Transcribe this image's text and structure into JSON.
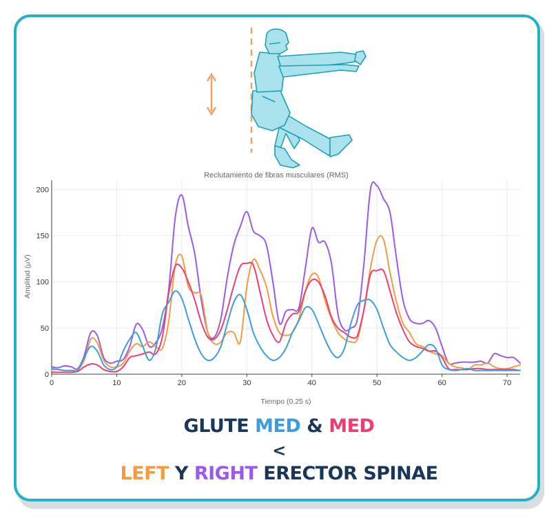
{
  "colors": {
    "frame": "#22b2c6",
    "navy": "#19375a",
    "blue": "#3b9ce0",
    "pink": "#ee3d6f",
    "orange": "#f59a43",
    "purple": "#9a59e6",
    "figure_fill": "#a9e2ec",
    "figure_line": "#1d9fb3",
    "arrow": "#f0a060"
  },
  "icons": [
    "single-leg-squat-figure-icon",
    "vertical-double-arrow-icon"
  ],
  "chart_data": {
    "type": "line",
    "title": "Reclutamiento de fibras musculares (RMS)",
    "xlabel": "Tiempo (0.25 s)",
    "ylabel": "Amplitud (µV)",
    "xlim": [
      0,
      72
    ],
    "ylim": [
      0,
      210
    ],
    "xticks": [
      "0",
      "10",
      "20",
      "30",
      "40",
      "50",
      "60",
      "70"
    ],
    "yticks": [
      "0",
      "50",
      "100",
      "150",
      "200"
    ],
    "grid": true,
    "legend": "none",
    "series": [
      {
        "color": "purple",
        "x": [
          0,
          1,
          2,
          3,
          4,
          5,
          6,
          7,
          8,
          9,
          10,
          11,
          12,
          13,
          14,
          15,
          16,
          17,
          18,
          19,
          20,
          21,
          22,
          23,
          24,
          25,
          26,
          27,
          28,
          29,
          30,
          31,
          32,
          33,
          34,
          35,
          36,
          37,
          38,
          39,
          40,
          41,
          42,
          43,
          44,
          45,
          46,
          47,
          48,
          49,
          50,
          51,
          52,
          53,
          54,
          55,
          56,
          57,
          58,
          59,
          60,
          61,
          62,
          63,
          64,
          65,
          66,
          67,
          68,
          69,
          70,
          71,
          72
        ],
        "values": [
          8,
          7,
          9,
          8,
          6,
          20,
          45,
          42,
          18,
          12,
          14,
          16,
          30,
          54,
          48,
          30,
          34,
          50,
          92,
          170,
          194,
          160,
          130,
          80,
          45,
          40,
          60,
          105,
          140,
          160,
          176,
          155,
          150,
          140,
          100,
          55,
          68,
          70,
          72,
          115,
          158,
          143,
          143,
          120,
          65,
          48,
          50,
          60,
          120,
          200,
          204,
          190,
          175,
          125,
          80,
          60,
          55,
          55,
          58,
          50,
          30,
          12,
          12,
          13,
          13,
          13,
          14,
          12,
          22,
          20,
          18,
          18,
          12
        ]
      },
      {
        "color": "orange",
        "x": [
          0,
          1,
          2,
          3,
          4,
          5,
          6,
          7,
          8,
          9,
          10,
          11,
          12,
          13,
          14,
          15,
          16,
          17,
          18,
          19,
          20,
          21,
          22,
          23,
          24,
          25,
          26,
          27,
          28,
          29,
          30,
          31,
          32,
          33,
          34,
          35,
          36,
          37,
          38,
          39,
          40,
          41,
          42,
          43,
          44,
          45,
          46,
          47,
          48,
          49,
          50,
          51,
          52,
          53,
          54,
          55,
          56,
          57,
          58,
          59,
          60,
          61,
          62,
          63,
          64,
          65,
          66,
          67,
          68,
          69,
          70,
          71,
          72
        ],
        "values": [
          5,
          5,
          4,
          4,
          5,
          15,
          38,
          34,
          15,
          8,
          8,
          12,
          25,
          33,
          30,
          35,
          30,
          28,
          58,
          118,
          128,
          95,
          88,
          85,
          45,
          33,
          35,
          45,
          45,
          35,
          95,
          124,
          113,
          95,
          63,
          45,
          42,
          45,
          60,
          90,
          108,
          105,
          80,
          60,
          45,
          38,
          35,
          38,
          70,
          115,
          145,
          146,
          110,
          78,
          55,
          45,
          33,
          30,
          25,
          22,
          20,
          12,
          8,
          7,
          5,
          10,
          10,
          12,
          8,
          6,
          6,
          8,
          10
        ]
      },
      {
        "color": "pink",
        "x": [
          0,
          1,
          2,
          3,
          4,
          5,
          6,
          7,
          8,
          9,
          10,
          11,
          12,
          13,
          14,
          15,
          16,
          17,
          18,
          19,
          20,
          21,
          22,
          23,
          24,
          25,
          26,
          27,
          28,
          29,
          30,
          31,
          32,
          33,
          34,
          35,
          36,
          37,
          38,
          39,
          40,
          41,
          42,
          43,
          44,
          45,
          46,
          47,
          48,
          49,
          50,
          51,
          52,
          53,
          54,
          55,
          56,
          57,
          58,
          59,
          60,
          61,
          62,
          63,
          64,
          65,
          66,
          67,
          68,
          69,
          70,
          71,
          72
        ],
        "values": [
          2,
          2,
          2,
          2,
          3,
          8,
          11,
          10,
          5,
          3,
          3,
          8,
          18,
          20,
          22,
          24,
          22,
          40,
          88,
          117,
          115,
          100,
          80,
          56,
          40,
          38,
          48,
          70,
          96,
          117,
          120,
          118,
          90,
          60,
          42,
          35,
          55,
          65,
          68,
          90,
          102,
          100,
          85,
          62,
          50,
          45,
          40,
          42,
          70,
          108,
          112,
          112,
          90,
          66,
          48,
          35,
          30,
          28,
          25,
          25,
          18,
          6,
          5,
          5,
          5,
          6,
          6,
          5,
          5,
          5,
          5,
          5,
          4
        ]
      },
      {
        "color": "blue",
        "x": [
          0,
          1,
          2,
          3,
          4,
          5,
          6,
          7,
          8,
          9,
          10,
          11,
          12,
          13,
          14,
          15,
          16,
          17,
          18,
          19,
          20,
          21,
          22,
          23,
          24,
          25,
          26,
          27,
          28,
          29,
          30,
          31,
          32,
          33,
          34,
          35,
          36,
          37,
          38,
          39,
          40,
          41,
          42,
          43,
          44,
          45,
          46,
          47,
          48,
          49,
          50,
          51,
          52,
          53,
          54,
          55,
          56,
          57,
          58,
          59,
          60,
          61,
          62,
          63,
          64,
          65,
          66,
          67,
          68,
          69,
          70,
          71,
          72
        ],
        "values": [
          6,
          5,
          4,
          4,
          4,
          18,
          30,
          25,
          10,
          5,
          8,
          25,
          38,
          45,
          30,
          15,
          28,
          65,
          78,
          90,
          82,
          60,
          38,
          22,
          15,
          18,
          30,
          55,
          78,
          86,
          70,
          45,
          30,
          20,
          15,
          18,
          28,
          45,
          58,
          72,
          70,
          55,
          38,
          24,
          18,
          28,
          55,
          75,
          80,
          80,
          70,
          50,
          32,
          24,
          18,
          15,
          18,
          25,
          32,
          28,
          10,
          5,
          4,
          5,
          6,
          4,
          4,
          4,
          4,
          4,
          4,
          4,
          4
        ]
      }
    ]
  },
  "caption": {
    "line1": [
      "GLUTE ",
      "MED",
      " & ",
      "MED"
    ],
    "line2": "<",
    "line3": [
      "LEFT",
      " Y ",
      "RIGHT",
      " ERECTOR SPINAE"
    ]
  }
}
